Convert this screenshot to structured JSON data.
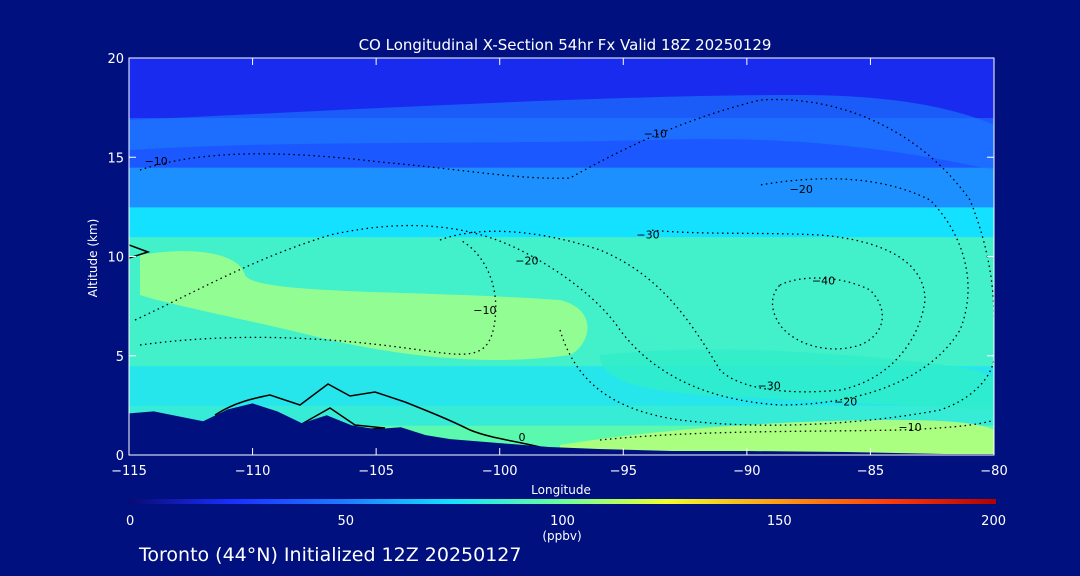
{
  "chart_data": {
    "type": "heatmap",
    "title": "CO Longitudinal X-Section 54hr  Fx Valid 18Z 20250129",
    "xlabel": "Longitude",
    "ylabel": "Altitude (km)",
    "xlim": [
      -115,
      -80
    ],
    "ylim": [
      0,
      20
    ],
    "x_ticks": [
      -115,
      -110,
      -105,
      -100,
      -95,
      -90,
      -85,
      -80
    ],
    "x_tick_labels": [
      "−115",
      "−110",
      "−105",
      "−100",
      "−95",
      "−90",
      "−85",
      "−80"
    ],
    "y_ticks": [
      0,
      5,
      10,
      15,
      20
    ],
    "y_tick_labels": [
      "0",
      "5",
      "10",
      "15",
      "20"
    ],
    "colorbar": {
      "min": 0,
      "max": 200,
      "ticks": [
        0,
        50,
        100,
        150,
        200
      ],
      "tick_labels": [
        "0",
        "50",
        "100",
        "150",
        "200"
      ],
      "unit_label": "(ppbv)"
    },
    "field_bands": [
      {
        "altitude": [
          0,
          1.5
        ],
        "ppbv": 95
      },
      {
        "altitude": [
          1.5,
          2.5
        ],
        "ppbv": 85
      },
      {
        "altitude": [
          2.5,
          4.5
        ],
        "ppbv": 80
      },
      {
        "altitude": [
          4.5,
          11
        ],
        "ppbv": 88
      },
      {
        "altitude": [
          11,
          12.5
        ],
        "ppbv": 75
      },
      {
        "altitude": [
          12.5,
          14.5
        ],
        "ppbv": 55
      },
      {
        "altitude": [
          14.5,
          17
        ],
        "ppbv": 38
      },
      {
        "altitude": [
          17,
          20
        ],
        "ppbv": 22
      }
    ],
    "contour_labels": [
      {
        "text": "−10",
        "x": -113.9,
        "y": 14.6
      },
      {
        "text": "−10",
        "x": -93.7,
        "y": 16.0
      },
      {
        "text": "−20",
        "x": -87.8,
        "y": 13.2
      },
      {
        "text": "−30",
        "x": -94.0,
        "y": 10.9
      },
      {
        "text": "−20",
        "x": -98.9,
        "y": 9.6
      },
      {
        "text": "−40",
        "x": -86.9,
        "y": 8.6
      },
      {
        "text": "−10",
        "x": -100.6,
        "y": 7.1
      },
      {
        "text": "−30",
        "x": -89.1,
        "y": 3.3
      },
      {
        "text": "−20",
        "x": -86.0,
        "y": 2.5
      },
      {
        "text": "−10",
        "x": -83.4,
        "y": 1.2
      },
      {
        "text": "0",
        "x": -99.1,
        "y": 0.7
      }
    ],
    "terrain": [
      [
        -115,
        2.1
      ],
      [
        -114,
        2.2
      ],
      [
        -112,
        1.7
      ],
      [
        -111,
        2.3
      ],
      [
        -110,
        2.6
      ],
      [
        -109,
        2.2
      ],
      [
        -108,
        1.6
      ],
      [
        -107,
        2.0
      ],
      [
        -106,
        1.5
      ],
      [
        -105,
        1.3
      ],
      [
        -104,
        1.4
      ],
      [
        -103,
        1.0
      ],
      [
        -102,
        0.8
      ],
      [
        -100,
        0.6
      ],
      [
        -98,
        0.4
      ],
      [
        -96,
        0.3
      ],
      [
        -93,
        0.2
      ],
      [
        -90,
        0.2
      ],
      [
        -86,
        0.15
      ],
      [
        -84,
        0.1
      ],
      [
        -82,
        0.05
      ],
      [
        -80,
        0.05
      ]
    ]
  },
  "footer": {
    "caption": "Toronto (44°N) Initialized 12Z 20250127"
  }
}
